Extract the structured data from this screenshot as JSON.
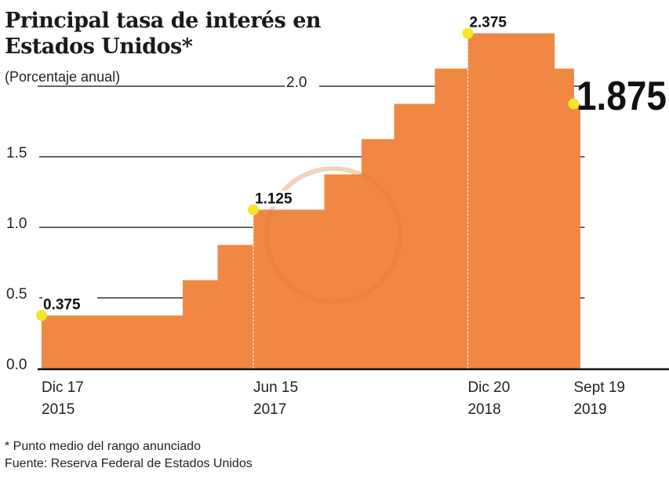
{
  "chart_data": {
    "type": "step-area",
    "title": "Principal tasa de interés en Estados Unidos*",
    "subtitle": "(Porcentaje anual)",
    "ylim": [
      0,
      2.4
    ],
    "yticks": [
      "0.0",
      "0.5",
      "1.0",
      "1.5",
      "2.0"
    ],
    "ytick_values": [
      0,
      0.5,
      1.0,
      1.5,
      2.0
    ],
    "grid": true,
    "color": "#f08743",
    "highlight_color": "#f5e62a",
    "steps": [
      {
        "date": "2015-12-17",
        "value": 0.375
      },
      {
        "date": "2016-12-15",
        "value": 0.625
      },
      {
        "date": "2017-03-15",
        "value": 0.875
      },
      {
        "date": "2017-06-15",
        "value": 1.125
      },
      {
        "date": "2017-12-15",
        "value": 1.375
      },
      {
        "date": "2018-03-21",
        "value": 1.625
      },
      {
        "date": "2018-06-13",
        "value": 1.875
      },
      {
        "date": "2018-09-26",
        "value": 2.125
      },
      {
        "date": "2018-12-20",
        "value": 2.375
      },
      {
        "date": "2019-07-31",
        "value": 2.125
      },
      {
        "date": "2019-09-19",
        "value": 1.875
      }
    ],
    "annotations": [
      {
        "date": "2015-12-17",
        "value": 0.375,
        "label": "0.375"
      },
      {
        "date": "2017-06-15",
        "value": 1.125,
        "label": "1.125"
      },
      {
        "date": "2018-12-20",
        "value": 2.375,
        "label": "2.375"
      },
      {
        "date": "2019-09-19",
        "value": 1.875,
        "label": "1.875"
      }
    ],
    "xticks": [
      {
        "date": "2015-12-17",
        "line1": "Dic 17",
        "line2": "2015"
      },
      {
        "date": "2017-06-15",
        "line1": "Jun 15",
        "line2": "2017"
      },
      {
        "date": "2018-12-20",
        "line1": "Dic 20",
        "line2": "2018"
      },
      {
        "date": "2019-09-19",
        "line1": "Sept 19",
        "line2": "2019"
      }
    ]
  },
  "footer": {
    "note": "* Punto medio del rango anunciado",
    "source": "Fuente: Reserva Federal de Estados Unidos"
  }
}
